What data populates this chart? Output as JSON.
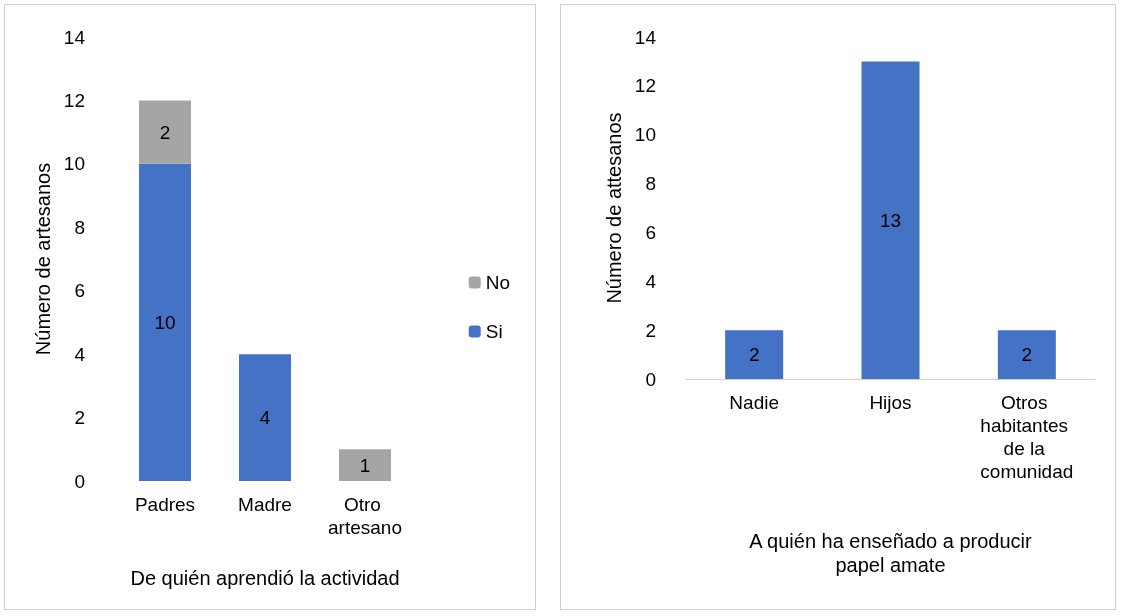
{
  "chart_data": [
    {
      "type": "bar",
      "stacked": true,
      "categories": [
        "Padres",
        "Madre",
        "Otro artesano"
      ],
      "series": [
        {
          "name": "Si",
          "color": "#4472c4",
          "values": [
            10,
            4,
            null
          ]
        },
        {
          "name": "No",
          "color": "#a5a5a5",
          "values": [
            2,
            null,
            1
          ]
        }
      ],
      "xlabel": "De quién aprendió la actividad",
      "ylabel": "Número de artesanos",
      "ylim": [
        0,
        14
      ],
      "yticks": [
        0,
        2,
        4,
        6,
        8,
        10,
        12,
        14
      ],
      "grid": false,
      "legend": "right",
      "data_labels": true
    },
    {
      "type": "bar",
      "categories": [
        "Nadie",
        "Hijos",
        "Otros habitantes de la comunidad"
      ],
      "values": [
        2,
        13,
        2
      ],
      "color": "#4472c4",
      "xlabel": "A quién ha enseñado a producir\npapel amate",
      "ylabel": "Número de attesanos",
      "ylim": [
        0,
        14
      ],
      "yticks": [
        0,
        2,
        4,
        6,
        8,
        10,
        12,
        14
      ],
      "grid": false,
      "data_labels": true
    }
  ]
}
